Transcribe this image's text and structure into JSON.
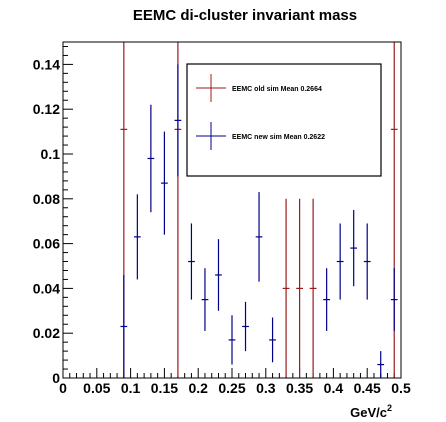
{
  "chart_data": {
    "type": "scatter",
    "title": "EEMC di-cluster invariant mass",
    "xlabel": "GeV/c",
    "xlabel_superscript": "2",
    "ylabel": "",
    "xlim": [
      0,
      0.5
    ],
    "ylim": [
      0,
      0.15
    ],
    "x_ticks": [
      "0",
      "0.05",
      "0.1",
      "0.15",
      "0.2",
      "0.25",
      "0.3",
      "0.35",
      "0.4",
      "0.45",
      "0.5"
    ],
    "y_ticks": [
      "0",
      "0.02",
      "0.04",
      "0.06",
      "0.08",
      "0.1",
      "0.12",
      "0.14"
    ],
    "legend_position": "top-right",
    "bin_width": 0.01,
    "series": [
      {
        "name": "EEMC old sim Mean 0.2664",
        "color": "#9b1b1b",
        "points": [
          {
            "x": 0.09,
            "y": 0.111,
            "err": 0.111
          },
          {
            "x": 0.17,
            "y": 0.111,
            "err": 0.111
          },
          {
            "x": 0.33,
            "y": 0.04,
            "err": 0.04
          },
          {
            "x": 0.35,
            "y": 0.04,
            "err": 0.04
          },
          {
            "x": 0.37,
            "y": 0.04,
            "err": 0.04
          },
          {
            "x": 0.49,
            "y": 0.111,
            "err": 0.111
          }
        ]
      },
      {
        "name": "EEMC new sim Mean 0.2622",
        "color": "#00008b",
        "points": [
          {
            "x": 0.09,
            "y": 0.023,
            "err": 0.023
          },
          {
            "x": 0.11,
            "y": 0.063,
            "err": 0.019
          },
          {
            "x": 0.13,
            "y": 0.098,
            "err": 0.024
          },
          {
            "x": 0.15,
            "y": 0.087,
            "err": 0.023
          },
          {
            "x": 0.17,
            "y": 0.115,
            "err": 0.025
          },
          {
            "x": 0.19,
            "y": 0.052,
            "err": 0.017
          },
          {
            "x": 0.21,
            "y": 0.035,
            "err": 0.014
          },
          {
            "x": 0.23,
            "y": 0.046,
            "err": 0.016
          },
          {
            "x": 0.25,
            "y": 0.017,
            "err": 0.011
          },
          {
            "x": 0.27,
            "y": 0.023,
            "err": 0.011
          },
          {
            "x": 0.29,
            "y": 0.063,
            "err": 0.02
          },
          {
            "x": 0.31,
            "y": 0.017,
            "err": 0.01
          },
          {
            "x": 0.39,
            "y": 0.035,
            "err": 0.014
          },
          {
            "x": 0.41,
            "y": 0.052,
            "err": 0.017
          },
          {
            "x": 0.43,
            "y": 0.058,
            "err": 0.017
          },
          {
            "x": 0.45,
            "y": 0.052,
            "err": 0.017
          },
          {
            "x": 0.47,
            "y": 0.006,
            "err": 0.006
          },
          {
            "x": 0.49,
            "y": 0.035,
            "err": 0.014
          }
        ]
      }
    ]
  }
}
